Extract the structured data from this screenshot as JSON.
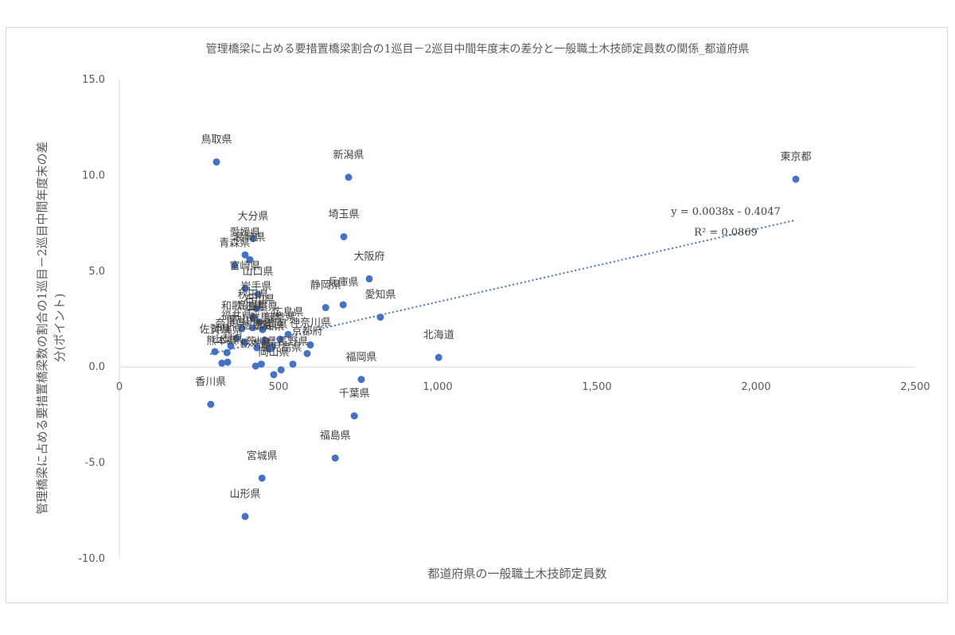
{
  "chart_data": {
    "type": "scatter",
    "title": "管理橋梁に占める要措置橋梁割合の1巡目－2巡目中間年度末の差分と一般職土木技師定員数の関係_都道府県",
    "xlabel": "都道府県の一般職土木技師定員数",
    "ylabel": "管理橋梁に占める要措置橋梁数の割合の1巡目－2巡目中間年度末の差分(ポイント)",
    "xlim": [
      0,
      2500
    ],
    "ylim": [
      -10,
      15
    ],
    "x_ticks": [
      0,
      500,
      1000,
      1500,
      2000,
      2500
    ],
    "x_tick_labels": [
      "0",
      "500",
      "1,000",
      "1,500",
      "2,000",
      "2,500"
    ],
    "y_ticks": [
      15,
      10,
      5,
      0,
      -5,
      -10
    ],
    "y_tick_labels": [
      "15.0",
      "10.0",
      "5.0",
      "0.0",
      "-5.0",
      "-10.0"
    ],
    "marker_color": "#4472c4",
    "trendline": {
      "type": "linear",
      "slope": 0.0038,
      "intercept": -0.4047,
      "x_range": [
        285,
        2125
      ],
      "equation_text": "y = 0.0038x - 0.4047",
      "r2_text": "R² = 0.0869",
      "color": "#4472c4",
      "style": "dotted"
    },
    "points": [
      {
        "label": "鳥取県",
        "x": 305,
        "y": 10.7
      },
      {
        "label": "新潟県",
        "x": 720,
        "y": 9.9
      },
      {
        "label": "東京都",
        "x": 2125,
        "y": 9.8
      },
      {
        "label": "埼玉県",
        "x": 705,
        "y": 6.8
      },
      {
        "label": "大分県",
        "x": 420,
        "y": 6.7
      },
      {
        "label": "愛媛県",
        "x": 395,
        "y": 5.85
      },
      {
        "label": "長崎県",
        "x": 410,
        "y": 5.6
      },
      {
        "label": "青森県",
        "x": 362,
        "y": 5.3
      },
      {
        "label": "大阪府",
        "x": 785,
        "y": 4.6
      },
      {
        "label": "宮崎県",
        "x": 395,
        "y": 4.1
      },
      {
        "label": "山口県",
        "x": 435,
        "y": 3.8
      },
      {
        "label": "静岡県",
        "x": 648,
        "y": 3.1
      },
      {
        "label": "兵庫県",
        "x": 703,
        "y": 3.25
      },
      {
        "label": "愛知県",
        "x": 820,
        "y": 2.6
      },
      {
        "label": "岩手県",
        "x": 430,
        "y": 3.05
      },
      {
        "label": "秋田県",
        "x": 420,
        "y": 2.6
      },
      {
        "label": "石川県",
        "x": 440,
        "y": 2.35
      },
      {
        "label": "和歌山県",
        "x": 385,
        "y": 2.0
      },
      {
        "label": "三重県",
        "x": 450,
        "y": 1.95
      },
      {
        "label": "島根県",
        "x": 418,
        "y": 2.05
      },
      {
        "label": "広島県",
        "x": 530,
        "y": 1.7
      },
      {
        "label": "岐阜県",
        "x": 505,
        "y": 1.45
      },
      {
        "label": "群馬県",
        "x": 458,
        "y": 1.4
      },
      {
        "label": "神奈川県",
        "x": 600,
        "y": 1.15
      },
      {
        "label": "佐賀県",
        "x": 300,
        "y": 0.8
      },
      {
        "label": "沖縄県",
        "x": 338,
        "y": 0.75
      },
      {
        "label": "奈良県",
        "x": 350,
        "y": 1.1
      },
      {
        "label": "福井県",
        "x": 368,
        "y": 1.5
      },
      {
        "label": "富山県",
        "x": 392,
        "y": 1.3
      },
      {
        "label": "徳島県",
        "x": 432,
        "y": 1.0
      },
      {
        "label": "高知県",
        "x": 470,
        "y": 0.95
      },
      {
        "label": "滋賀県",
        "x": 480,
        "y": 1.05
      },
      {
        "label": "京都府",
        "x": 590,
        "y": 0.7
      },
      {
        "label": "北海道",
        "x": 1003,
        "y": 0.5
      },
      {
        "label": "熊本県",
        "x": 322,
        "y": 0.2
      },
      {
        "label": "山梨県",
        "x": 340,
        "y": 0.25
      },
      {
        "label": "栃木県",
        "x": 428,
        "y": 0.05
      },
      {
        "label": "茨城県",
        "x": 446,
        "y": 0.15
      },
      {
        "label": "鹿児島県",
        "x": 508,
        "y": -0.15
      },
      {
        "label": "長野県",
        "x": 545,
        "y": 0.15
      },
      {
        "label": "岡山県",
        "x": 485,
        "y": -0.4
      },
      {
        "label": "香川県",
        "x": 287,
        "y": -1.95
      },
      {
        "label": "福岡県",
        "x": 760,
        "y": -0.65
      },
      {
        "label": "千葉県",
        "x": 738,
        "y": -2.55
      },
      {
        "label": "福島県",
        "x": 678,
        "y": -4.75
      },
      {
        "label": "宮城県",
        "x": 448,
        "y": -5.8
      },
      {
        "label": "山形県",
        "x": 395,
        "y": -7.8
      }
    ],
    "visible_point_labels": [
      "鳥取県",
      "新潟県",
      "東京都",
      "埼玉県",
      "大分県",
      "愛媛県",
      "長崎県",
      "青森県",
      "大阪府",
      "宮崎県",
      "山口県",
      "静岡県",
      "兵庫県",
      "愛知県",
      "岩手県",
      "秋田県",
      "石川県",
      "和歌山県",
      "三重県",
      "島根県",
      "広島県",
      "岐阜県",
      "群馬県",
      "神奈川県",
      "佐賀県",
      "沖縄県",
      "奈良県",
      "福井県",
      "富山県",
      "徳島県",
      "高知県",
      "滋賀県",
      "京都府",
      "北海道",
      "熊本県",
      "山梨県",
      "栃木県",
      "茨城県",
      "鹿児島県",
      "長野県",
      "岡山県",
      "香川県",
      "福岡県",
      "千葉県",
      "福島県",
      "宮城県",
      "山形県"
    ],
    "grid": false,
    "legend": "none"
  }
}
